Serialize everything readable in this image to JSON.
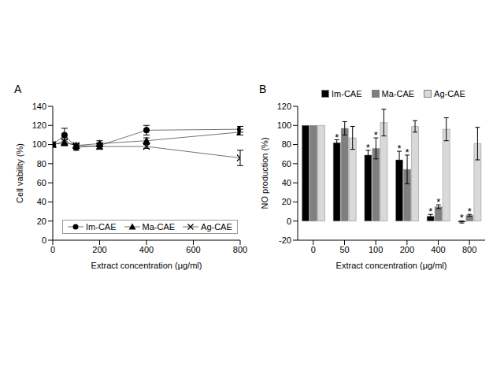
{
  "chart_data": [
    {
      "type": "line",
      "panel_label": "A",
      "x_label": "Extract concentration (μg/ml)",
      "y_label": "Cell vability (%)",
      "x": [
        0,
        50,
        100,
        200,
        400,
        800
      ],
      "xlim": [
        0,
        800
      ],
      "xticks": [
        0,
        200,
        400,
        600,
        800
      ],
      "ylim": [
        0,
        140
      ],
      "yticks": [
        0,
        20,
        40,
        60,
        80,
        100,
        120,
        140
      ],
      "grid": false,
      "legend": "bottom",
      "series": [
        {
          "name": "Im-CAE",
          "color": "#000000",
          "marker": "circle",
          "values": [
            100,
            110,
            97,
            99,
            115,
            116
          ],
          "errors": [
            0,
            7,
            3,
            3,
            5,
            3
          ]
        },
        {
          "name": "Ma-CAE",
          "color": "#000000",
          "marker": "triangle",
          "values": [
            100,
            102,
            99,
            101,
            104,
            113
          ],
          "errors": [
            0,
            3,
            2,
            3,
            3,
            3
          ]
        },
        {
          "name": "Ag-CAE",
          "color": "#000000",
          "marker": "x",
          "values": [
            100,
            103,
            99,
            98,
            98,
            86
          ],
          "errors": [
            0,
            4,
            2,
            3,
            2,
            8
          ]
        }
      ]
    },
    {
      "type": "bar",
      "panel_label": "B",
      "x_label": "Extract concentration (μg/ml)",
      "y_label": "NO production (%)",
      "categories": [
        0,
        50,
        100,
        200,
        400,
        800
      ],
      "ylim": [
        -20,
        120
      ],
      "yticks": [
        -20,
        0,
        20,
        40,
        60,
        80,
        100,
        120
      ],
      "grid": false,
      "legend": "top",
      "series": [
        {
          "name": "Im-CAE",
          "color": "#000000",
          "values": [
            100,
            82,
            69,
            64,
            5,
            -1
          ],
          "errors": [
            0,
            3,
            5,
            9,
            2,
            1
          ],
          "significance": [
            null,
            "*",
            "*",
            "*",
            "*",
            "*"
          ]
        },
        {
          "name": "Ma-CAE",
          "color": "#7f7f7f",
          "values": [
            100,
            97,
            76,
            54,
            15,
            6
          ],
          "errors": [
            0,
            7,
            11,
            15,
            2,
            1
          ],
          "significance": [
            null,
            null,
            "*",
            "*",
            "*",
            "*"
          ]
        },
        {
          "name": "Ag-CAE",
          "color": "#d9d9d9",
          "values": [
            100,
            87,
            103,
            99,
            96,
            81
          ],
          "errors": [
            0,
            12,
            14,
            6,
            12,
            17
          ],
          "significance": [
            null,
            null,
            null,
            null,
            null,
            null
          ]
        }
      ]
    }
  ]
}
